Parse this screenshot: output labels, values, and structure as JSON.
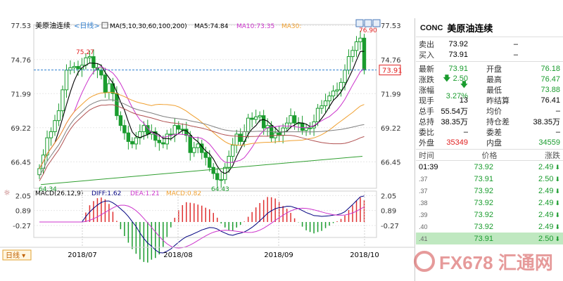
{
  "chart": {
    "ma_label": "美原油连续",
    "period_label": "日线",
    "ma_spec": "MA(5,10,30,60,100,200)",
    "ma5_text": "MA5:74.84",
    "ma10_text": "MA10:73.35",
    "ma30_text": "MA30:",
    "macd_spec": "MACD(26,12,9)",
    "diff_text": "DIFF:1.62",
    "dea_text": "DEA:1.21",
    "macd_text": "MACD:0.82",
    "period_button": "日线",
    "price_ticks": [
      "77.53",
      "74.76",
      "71.99",
      "69.22",
      "66.45"
    ],
    "macd_ticks": [
      "2.05",
      "0.89",
      "-0.27"
    ],
    "last_price_tag": "73.91",
    "high_label": "76.90",
    "peak_label": "75.27",
    "low_label": "64.43",
    "min_label": "64.34",
    "date_ticks": [
      "2018/07",
      "2018/08",
      "2018/09",
      "2018/10"
    ],
    "colors": {
      "up": "#1a9c2e",
      "down": "#1a9c2e",
      "ma5": "#000000",
      "ma10": "#cc33cc",
      "ma30": "#f0a030",
      "ma60": "#b05050",
      "ma100": "#808080",
      "ma200": "#2f9e2f",
      "diff": "#000080",
      "dea": "#cc33cc",
      "macd_bar": "#e03030",
      "last_line": "#2f7fd0"
    }
  },
  "chart_data": {
    "type": "candlestick",
    "x": [
      "2018/07",
      "2018/08",
      "2018/09",
      "2018/10"
    ],
    "ylim": [
      64.3,
      77.6
    ],
    "annotations": [
      "75.27",
      "76.90",
      "64.43",
      "64.34"
    ],
    "last_price": 73.91,
    "closes": [
      65.9,
      67.0,
      68.4,
      68.9,
      69.8,
      70.6,
      72.3,
      73.9,
      74.1,
      74.2,
      74.0,
      74.3,
      74.9,
      75.0,
      74.1,
      73.9,
      73.5,
      72.1,
      72.8,
      72.0,
      70.2,
      69.4,
      68.8,
      68.1,
      67.9,
      68.4,
      68.9,
      69.4,
      68.7,
      68.9,
      68.2,
      68.0,
      67.9,
      68.7,
      68.7,
      69.4,
      69.1,
      69.1,
      68.6,
      67.2,
      67.6,
      67.9,
      67.2,
      66.8,
      66.0,
      65.5,
      65.0,
      65.0,
      66.0,
      66.9,
      67.8,
      68.7,
      68.1,
      68.9,
      70.0,
      69.9,
      70.1,
      70.2,
      69.2,
      69.4,
      68.4,
      68.8,
      68.6,
      69.2,
      69.6,
      70.2,
      69.6,
      69.6,
      69.0,
      69.2,
      69.2,
      69.7,
      70.8,
      71.0,
      71.4,
      71.8,
      72.2,
      72.3,
      72.9,
      73.9,
      75.0,
      75.5,
      76.2,
      76.5,
      73.91
    ],
    "macd": {
      "diff": 1.62,
      "dea": 1.21,
      "macd": 0.82
    }
  },
  "quote": {
    "code": "CONC",
    "name": "美原油连续",
    "sell_label": "卖出",
    "sell": "73.92",
    "sell_vol": "–",
    "buy_label": "买入",
    "buy": "73.91",
    "buy_vol": "–",
    "latest_label": "最新",
    "latest": "73.91",
    "open_label": "开盘",
    "open": "76.18",
    "change_label": "涨跌",
    "change": "2.50",
    "high_label": "最高",
    "high": "76.47",
    "pct_label": "涨幅",
    "pct": "3.27%",
    "low_label": "最低",
    "low": "73.88",
    "cur_vol_label": "现手",
    "cur_vol": "13",
    "prev_settle_label": "昨结算",
    "prev_settle": "76.41",
    "total_vol_label": "总手",
    "total_vol": "55.54万",
    "avg_label": "均价",
    "avg": "–",
    "oi_label": "总持",
    "oi": "38.35万",
    "oi_diff_label": "持仓差",
    "oi_diff": "38.35万",
    "committee_label": "委比",
    "committee": "–",
    "committee_diff_label": "委差",
    "committee_diff": "–",
    "outer_label": "外盘",
    "outer": "35349",
    "inner_label": "内盘",
    "inner": "34559",
    "ticks_head": [
      "时间",
      "价格",
      "涨跌"
    ],
    "ticks": [
      {
        "time": "01:39",
        "price": "73.92",
        "chg": "2.49"
      },
      {
        "time": ".37",
        "price": "73.91",
        "chg": "2.50"
      },
      {
        "time": ".37",
        "price": "73.92",
        "chg": "2.49"
      },
      {
        "time": ".38",
        "price": "73.92",
        "chg": "2.49"
      },
      {
        "time": ".39",
        "price": "73.92",
        "chg": "2.49"
      },
      {
        "time": ".40",
        "price": "73.92",
        "chg": "2.49"
      },
      {
        "time": ".41",
        "price": "73.91",
        "chg": "2.50"
      }
    ]
  },
  "watermark": "FX678 汇通网"
}
